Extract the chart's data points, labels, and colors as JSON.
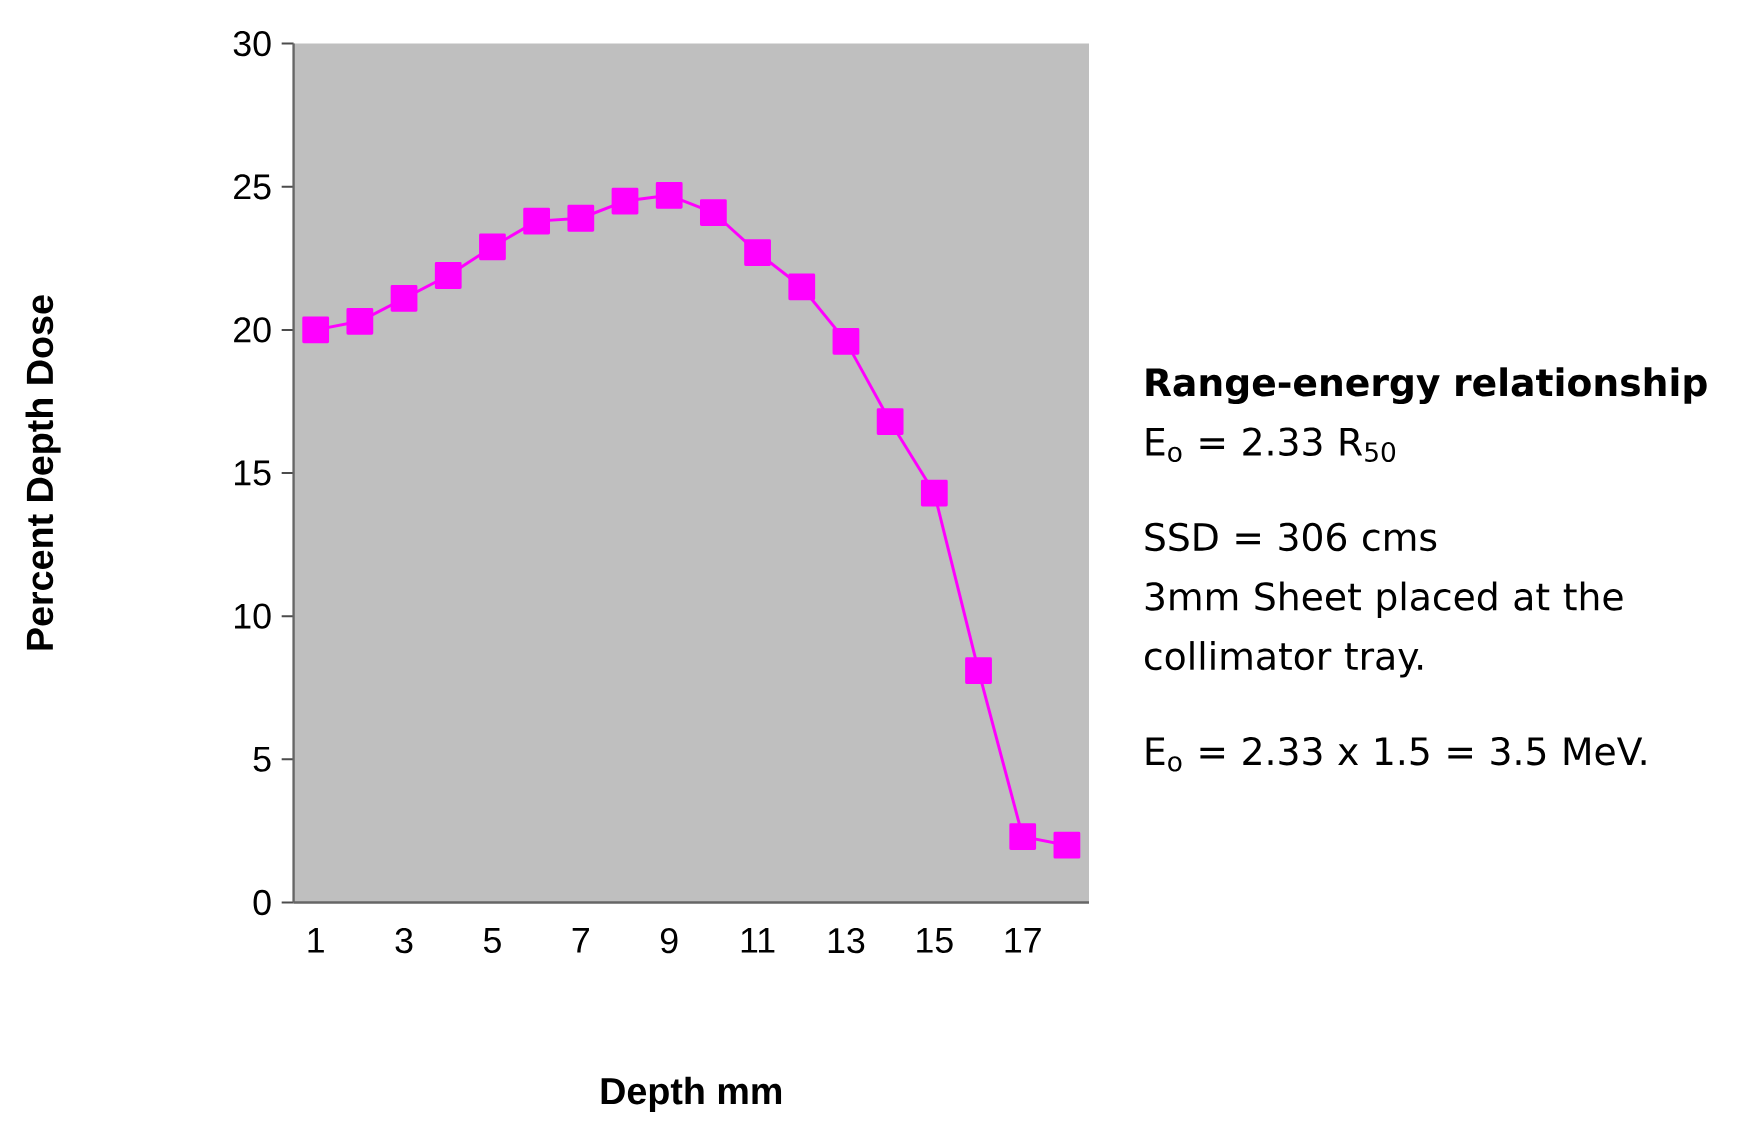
{
  "chart_data": {
    "type": "line",
    "xlabel": "Depth mm",
    "ylabel": "Percent Depth Dose",
    "categories": [
      "1",
      null,
      "3",
      null,
      "5",
      null,
      "7",
      null,
      "9",
      null,
      "11",
      null,
      "13",
      null,
      "15",
      null,
      "17",
      null
    ],
    "series": [
      {
        "color": "#ff00ff",
        "values": [
          20.0,
          20.3,
          21.1,
          21.9,
          22.9,
          23.8,
          23.9,
          24.5,
          24.7,
          24.1,
          22.7,
          21.5,
          19.6,
          16.8,
          14.3,
          8.1,
          2.3,
          2.0
        ]
      }
    ],
    "ylim": [
      0,
      30
    ],
    "yticks": [
      0,
      5,
      10,
      15,
      20,
      25,
      30
    ],
    "marker": "square",
    "line_style": "solid",
    "grid": false,
    "annotations": [
      "Range-energy relationship",
      "E$_{o}$ =  2.33 R$_{50}$",
      "SSD =  306 cms",
      "3mm Sheet placed at the collimator tray.",
      "E$_{o}$ =  2.33 x 1.5  =  3.5 MeV."
    ]
  }
}
